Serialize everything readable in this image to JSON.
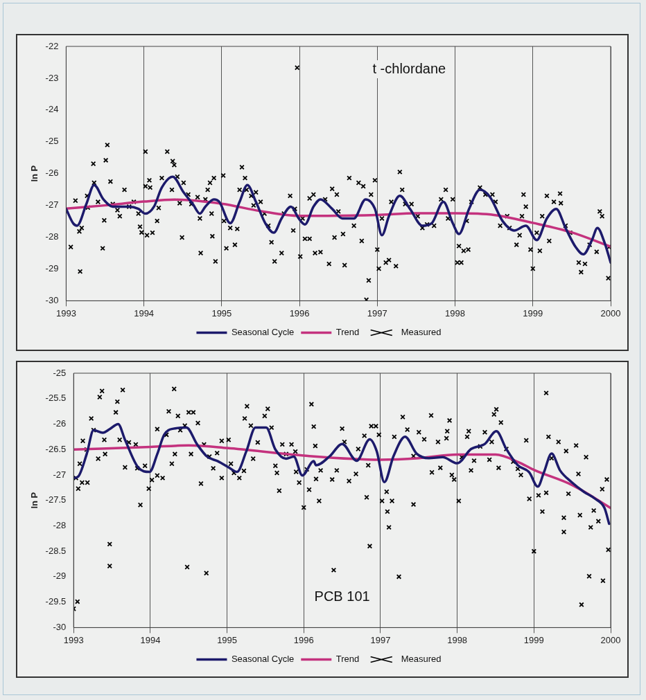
{
  "chart_data": [
    {
      "type": "line",
      "ylabel": "ln P",
      "xlim": [
        1993,
        2000
      ],
      "xticks": [
        1993,
        1994,
        1995,
        1996,
        1997,
        1998,
        1999,
        2000
      ],
      "ylim": [
        -30,
        -22
      ],
      "yticks": [
        -30,
        -29,
        -28,
        -27,
        -26,
        -25,
        -24,
        -23,
        -22
      ],
      "grid": "x",
      "legend": "bottom",
      "annotations": [
        "t -chlordane"
      ],
      "series": [
        {
          "name": "Seasonal Cycle",
          "type": "line",
          "marker": "none",
          "color": "#1c1a6b",
          "x": [
            1993.0,
            1993.09,
            1993.14,
            1993.26,
            1993.36,
            1993.48,
            1993.6,
            1993.81,
            1993.93,
            1994.02,
            1994.13,
            1994.23,
            1994.37,
            1994.51,
            1994.63,
            1994.72,
            1994.79,
            1994.9,
            1994.97,
            1995.11,
            1995.23,
            1995.33,
            1995.44,
            1995.56,
            1995.67,
            1995.77,
            1995.89,
            1995.99,
            1996.07,
            1996.18,
            1996.27,
            1996.42,
            1996.55,
            1996.7,
            1996.85,
            1996.97,
            1997.06,
            1997.15,
            1997.29,
            1997.42,
            1997.58,
            1997.7,
            1997.85,
            1997.97,
            1998.05,
            1998.18,
            1998.32,
            1998.45,
            1998.61,
            1998.76,
            1998.91,
            1999.05,
            1999.18,
            1999.3,
            1999.42,
            1999.55,
            1999.65,
            1999.76,
            1999.83,
            1999.92,
            2000.0
          ],
          "values": [
            -27.11,
            -27.56,
            -27.64,
            -26.96,
            -26.36,
            -26.81,
            -27.04,
            -27.04,
            -27.11,
            -27.26,
            -27.04,
            -26.44,
            -26.1,
            -26.59,
            -26.96,
            -27.26,
            -27.04,
            -26.81,
            -26.89,
            -27.56,
            -26.89,
            -26.36,
            -26.89,
            -27.56,
            -27.86,
            -27.41,
            -27.04,
            -27.41,
            -27.6,
            -27.04,
            -26.81,
            -27.11,
            -27.41,
            -27.41,
            -26.81,
            -27.11,
            -27.94,
            -27.34,
            -26.7,
            -27.11,
            -27.64,
            -27.56,
            -26.89,
            -27.56,
            -27.9,
            -27.11,
            -26.51,
            -26.74,
            -27.49,
            -27.79,
            -27.64,
            -28.09,
            -27.41,
            -27.11,
            -27.71,
            -28.31,
            -28.54,
            -28.09,
            -27.71,
            -28.16,
            -28.8
          ]
        },
        {
          "name": "Trend",
          "type": "line",
          "marker": "none",
          "color": "#c4327e",
          "x": [
            1993,
            1993.5,
            1994,
            1994.4,
            1995,
            1995.5,
            1996,
            1997,
            1997.5,
            1998,
            1998.5,
            1999,
            1999.5,
            2000
          ],
          "values": [
            -27.1,
            -27.0,
            -26.88,
            -26.82,
            -26.95,
            -27.18,
            -27.33,
            -27.3,
            -27.25,
            -27.25,
            -27.3,
            -27.55,
            -27.85,
            -28.3
          ]
        },
        {
          "name": "Measured",
          "type": "scatter",
          "marker": "cross",
          "color": "#000000",
          "x": [
            1993.06,
            1993.18,
            1993.12,
            1993.17,
            1993.2,
            1993.27,
            1993.28,
            1993.35,
            1993.36,
            1993.41,
            1993.47,
            1993.49,
            1993.51,
            1993.53,
            1993.57,
            1993.6,
            1993.66,
            1993.69,
            1993.75,
            1993.81,
            1993.87,
            1993.93,
            1993.95,
            1993.97,
            1994.02,
            1994.02,
            1994.07,
            1994.08,
            1994.04,
            1994.11,
            1994.17,
            1994.19,
            1994.23,
            1994.3,
            1994.37,
            1994.39,
            1994.36,
            1994.43,
            1994.46,
            1994.49,
            1994.51,
            1994.57,
            1994.61,
            1994.69,
            1994.72,
            1994.73,
            1994.79,
            1994.82,
            1994.85,
            1994.87,
            1994.9,
            1994.88,
            1994.92,
            1995.02,
            1995.03,
            1995.06,
            1995.11,
            1995.17,
            1995.2,
            1995.23,
            1995.26,
            1995.3,
            1995.32,
            1995.38,
            1995.41,
            1995.44,
            1995.5,
            1995.55,
            1995.6,
            1995.64,
            1995.68,
            1995.77,
            1995.8,
            1995.88,
            1995.92,
            1995.94,
            1995.97,
            1996.01,
            1996.04,
            1996.07,
            1996.13,
            1996.13,
            1996.18,
            1996.2,
            1996.27,
            1996.33,
            1996.42,
            1996.38,
            1996.48,
            1996.45,
            1996.5,
            1996.56,
            1996.58,
            1996.64,
            1996.7,
            1996.76,
            1996.82,
            1996.8,
            1996.86,
            1996.89,
            1996.92,
            1996.97,
            1997.0,
            1997.02,
            1997.06,
            1997.11,
            1997.15,
            1997.18,
            1997.24,
            1997.29,
            1997.32,
            1997.36,
            1997.44,
            1997.52,
            1997.58,
            1997.64,
            1997.73,
            1997.82,
            1997.88,
            1997.91,
            1997.97,
            1998.03,
            1998.05,
            1998.08,
            1998.11,
            1998.17,
            1998.15,
            1998.21,
            1998.32,
            1998.39,
            1998.48,
            1998.52,
            1998.58,
            1998.67,
            1998.7,
            1998.79,
            1998.83,
            1998.88,
            1998.91,
            1998.86,
            1998.97,
            1999.0,
            1999.05,
            1999.09,
            1999.12,
            1999.21,
            1999.18,
            1999.27,
            1999.35,
            1999.36,
            1999.42,
            1999.48,
            1999.59,
            1999.62,
            1999.67,
            1999.73,
            1999.82,
            1999.86,
            1999.89,
            1999.98,
            1999.97
          ],
          "values": [
            -28.31,
            -29.08,
            -26.85,
            -27.82,
            -27.71,
            -26.7,
            -27.07,
            -25.69,
            -26.29,
            -26.89,
            -28.35,
            -27.47,
            -25.58,
            -25.1,
            -26.25,
            -26.96,
            -27.15,
            -27.34,
            -26.51,
            -27.04,
            -26.89,
            -27.26,
            -27.67,
            -27.85,
            -25.31,
            -26.4,
            -26.21,
            -26.44,
            -27.94,
            -27.86,
            -27.49,
            -27.08,
            -26.14,
            -25.31,
            -25.61,
            -25.73,
            -26.51,
            -26.1,
            -26.93,
            -28.01,
            -26.29,
            -26.66,
            -26.96,
            -26.74,
            -27.41,
            -28.5,
            -26.81,
            -26.51,
            -26.29,
            -27.26,
            -26.14,
            -27.97,
            -28.76,
            -26.06,
            -27.49,
            -28.35,
            -27.71,
            -28.24,
            -27.74,
            -26.51,
            -25.8,
            -26.14,
            -26.51,
            -26.7,
            -27.0,
            -26.59,
            -26.89,
            -27.26,
            -27.64,
            -28.16,
            -28.76,
            -28.5,
            -27.26,
            -26.7,
            -27.79,
            -27.11,
            -22.67,
            -28.61,
            -27.41,
            -28.05,
            -28.05,
            -26.78,
            -26.66,
            -28.5,
            -28.47,
            -26.81,
            -26.48,
            -28.84,
            -26.66,
            -28.01,
            -27.19,
            -27.9,
            -28.88,
            -26.14,
            -27.64,
            -26.29,
            -26.4,
            -28.12,
            -29.97,
            -29.36,
            -26.66,
            -26.21,
            -28.39,
            -28.99,
            -27.41,
            -28.8,
            -28.72,
            -26.89,
            -28.91,
            -25.95,
            -26.51,
            -26.96,
            -26.96,
            -27.34,
            -27.71,
            -27.6,
            -27.64,
            -26.81,
            -26.51,
            -27.41,
            -26.81,
            -28.8,
            -28.28,
            -28.8,
            -28.43,
            -28.39,
            -27.49,
            -26.89,
            -26.44,
            -26.66,
            -26.66,
            -26.89,
            -27.64,
            -27.34,
            -27.71,
            -28.24,
            -27.94,
            -26.66,
            -27.04,
            -27.34,
            -28.39,
            -28.99,
            -27.86,
            -28.43,
            -27.34,
            -28.12,
            -26.7,
            -26.89,
            -26.63,
            -26.93,
            -27.64,
            -27.86,
            -28.8,
            -29.1,
            -28.84,
            -28.24,
            -28.46,
            -27.19,
            -27.34,
            -28.31,
            -29.29
          ]
        }
      ]
    },
    {
      "type": "line",
      "ylabel": "ln P",
      "xlim": [
        1993,
        2000
      ],
      "xticks": [
        1993,
        1994,
        1995,
        1996,
        1997,
        1998,
        1999,
        2000
      ],
      "ylim": [
        -30,
        -25
      ],
      "yticks": [
        -30,
        -29.5,
        -29,
        -28.5,
        -28,
        -27.5,
        -27,
        -26.5,
        -26,
        -25.5,
        -25
      ],
      "grid": "x",
      "legend": "bottom",
      "annotations": [
        "PCB 101"
      ],
      "series": [
        {
          "name": "Seasonal Cycle",
          "type": "line",
          "marker": "none",
          "color": "#1c1a6b",
          "x": [
            1993.0,
            1993.06,
            1993.17,
            1993.26,
            1993.38,
            1993.47,
            1993.58,
            1993.67,
            1993.84,
            1993.99,
            1994.09,
            1994.18,
            1994.3,
            1994.47,
            1994.61,
            1994.74,
            1994.88,
            1995.02,
            1995.13,
            1995.25,
            1995.37,
            1995.51,
            1995.63,
            1995.77,
            1995.87,
            1995.98,
            1996.13,
            1996.16,
            1996.34,
            1996.5,
            1996.69,
            1996.86,
            1996.95,
            1997.05,
            1997.17,
            1997.32,
            1997.47,
            1997.63,
            1997.81,
            1998.0,
            1998.18,
            1998.36,
            1998.51,
            1998.64,
            1998.79,
            1998.94,
            1999.05,
            1999.13,
            1999.23,
            1999.34,
            1999.49,
            1999.65,
            1999.8,
            1999.92,
            1999.98
          ],
          "values": [
            -27.06,
            -27.03,
            -26.59,
            -26.12,
            -26.17,
            -26.1,
            -26.0,
            -26.31,
            -26.85,
            -26.94,
            -26.59,
            -26.21,
            -26.09,
            -26.07,
            -26.4,
            -26.64,
            -26.73,
            -26.85,
            -26.94,
            -26.54,
            -26.07,
            -26.07,
            -26.5,
            -26.68,
            -26.64,
            -27.01,
            -26.73,
            -26.81,
            -26.63,
            -26.39,
            -26.72,
            -26.3,
            -26.53,
            -27.14,
            -26.63,
            -26.25,
            -26.58,
            -26.67,
            -26.65,
            -26.77,
            -26.49,
            -26.39,
            -26.14,
            -26.49,
            -26.81,
            -26.95,
            -27.23,
            -26.95,
            -26.58,
            -26.91,
            -27.14,
            -27.33,
            -27.47,
            -27.65,
            -27.96
          ]
        },
        {
          "name": "Trend",
          "type": "line",
          "marker": "none",
          "color": "#c4327e",
          "x": [
            1993,
            1994,
            1994.5,
            1995,
            1996,
            1997,
            1997.5,
            1998,
            1998.5,
            1998.8,
            1999,
            1999.5,
            2000
          ],
          "values": [
            -26.5,
            -26.45,
            -26.42,
            -26.47,
            -26.62,
            -26.7,
            -26.67,
            -26.6,
            -26.6,
            -26.75,
            -26.9,
            -27.2,
            -27.65
          ]
        },
        {
          "name": "Measured",
          "type": "scatter",
          "marker": "cross",
          "color": "#000000",
          "x": [
            1993.0,
            1993.05,
            1993.03,
            1993.06,
            1993.11,
            1993.18,
            1993.08,
            1993.12,
            1993.17,
            1993.23,
            1993.26,
            1993.32,
            1993.34,
            1993.37,
            1993.4,
            1993.41,
            1993.47,
            1993.47,
            1993.55,
            1993.57,
            1993.64,
            1993.6,
            1993.67,
            1993.72,
            1993.81,
            1993.83,
            1993.87,
            1993.93,
            1993.98,
            1994.02,
            1994.09,
            1994.16,
            1994.09,
            1994.21,
            1994.24,
            1994.31,
            1994.28,
            1994.32,
            1994.36,
            1994.39,
            1994.45,
            1994.48,
            1994.5,
            1994.53,
            1994.56,
            1994.62,
            1994.66,
            1994.7,
            1994.73,
            1994.77,
            1994.82,
            1994.87,
            1994.93,
            1994.93,
            1995.02,
            1995.05,
            1995.09,
            1995.16,
            1995.22,
            1995.23,
            1995.26,
            1995.31,
            1995.34,
            1995.4,
            1995.49,
            1995.53,
            1995.58,
            1995.63,
            1995.65,
            1995.68,
            1995.72,
            1995.77,
            1995.84,
            1995.89,
            1995.9,
            1995.94,
            1996.0,
            1996.04,
            1996.07,
            1996.1,
            1996.13,
            1996.15,
            1996.16,
            1996.2,
            1996.22,
            1996.37,
            1996.39,
            1996.43,
            1996.5,
            1996.53,
            1996.59,
            1996.68,
            1996.71,
            1996.79,
            1996.82,
            1996.84,
            1996.86,
            1996.88,
            1996.94,
            1996.98,
            1997.02,
            1997.08,
            1997.09,
            1997.11,
            1997.15,
            1997.18,
            1997.24,
            1997.29,
            1997.35,
            1997.43,
            1997.43,
            1997.5,
            1997.57,
            1997.66,
            1997.67,
            1997.75,
            1997.78,
            1997.86,
            1997.87,
            1997.9,
            1997.93,
            1997.96,
            1998.02,
            1998.06,
            1998.13,
            1998.15,
            1998.18,
            1998.22,
            1998.3,
            1998.36,
            1998.42,
            1998.45,
            1998.48,
            1998.51,
            1998.54,
            1998.57,
            1998.64,
            1998.73,
            1998.79,
            1998.83,
            1998.9,
            1998.94,
            1999.0,
            1999.06,
            1999.11,
            1999.16,
            1999.16,
            1999.19,
            1999.23,
            1999.32,
            1999.39,
            1999.39,
            1999.42,
            1999.45,
            1999.55,
            1999.58,
            1999.6,
            1999.62,
            1999.68,
            1999.72,
            1999.74,
            1999.78,
            1999.84,
            1999.89,
            1999.9,
            1999.95,
            1999.97
          ],
          "values": [
            -29.63,
            -29.49,
            -27.06,
            -27.27,
            -27.15,
            -27.15,
            -26.78,
            -26.33,
            -26.5,
            -25.89,
            -26.12,
            -26.68,
            -25.47,
            -25.35,
            -26.31,
            -26.59,
            -28.36,
            -28.79,
            -25.77,
            -25.56,
            -25.33,
            -26.31,
            -26.85,
            -26.36,
            -26.4,
            -26.87,
            -27.59,
            -26.82,
            -27.27,
            -27.1,
            -27.01,
            -27.06,
            -26.1,
            -26.21,
            -25.75,
            -25.31,
            -26.78,
            -26.59,
            -25.84,
            -26.12,
            -26.03,
            -28.81,
            -25.77,
            -26.59,
            -25.77,
            -25.98,
            -27.17,
            -26.4,
            -28.93,
            -26.64,
            -26.87,
            -26.57,
            -27.06,
            -26.33,
            -26.31,
            -26.78,
            -26.96,
            -27.06,
            -26.92,
            -25.89,
            -25.65,
            -26.03,
            -26.68,
            -26.36,
            -25.84,
            -25.7,
            -26.07,
            -26.82,
            -26.96,
            -27.31,
            -26.4,
            -26.59,
            -26.4,
            -26.54,
            -26.94,
            -27.15,
            -27.64,
            -26.89,
            -27.29,
            -25.61,
            -26.05,
            -26.43,
            -27.08,
            -27.51,
            -26.91,
            -27.09,
            -28.87,
            -26.91,
            -26.09,
            -26.35,
            -27.12,
            -26.98,
            -26.49,
            -26.23,
            -27.44,
            -26.81,
            -28.4,
            -26.04,
            -26.04,
            -26.21,
            -27.51,
            -27.33,
            -27.72,
            -28.03,
            -27.51,
            -26.25,
            -29.0,
            -25.86,
            -26.11,
            -27.58,
            -26.63,
            -26.16,
            -26.3,
            -25.83,
            -26.95,
            -26.35,
            -26.86,
            -26.28,
            -26.14,
            -25.93,
            -27.0,
            -27.09,
            -27.51,
            -26.65,
            -26.25,
            -26.14,
            -26.91,
            -26.72,
            -26.44,
            -26.16,
            -26.7,
            -26.35,
            -25.81,
            -25.71,
            -26.86,
            -25.97,
            -26.49,
            -26.74,
            -26.88,
            -27.0,
            -26.32,
            -27.47,
            -28.5,
            -27.4,
            -27.72,
            -27.35,
            -25.39,
            -26.25,
            -26.67,
            -26.35,
            -27.84,
            -28.12,
            -26.53,
            -27.37,
            -26.42,
            -26.98,
            -27.79,
            -29.55,
            -26.65,
            -28.99,
            -28.03,
            -27.7,
            -27.91,
            -27.28,
            -29.08,
            -27.09,
            -28.47
          ]
        }
      ]
    }
  ]
}
